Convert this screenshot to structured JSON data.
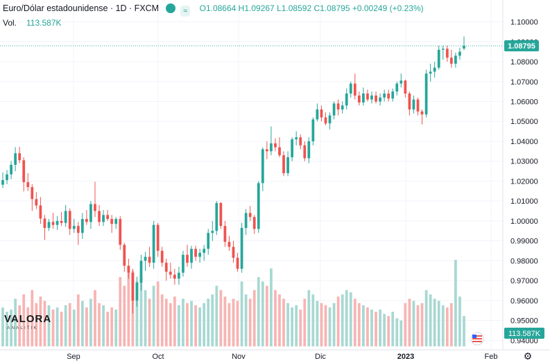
{
  "header": {
    "title": "Euro/Dólar estadounidense · 1D · FXCM",
    "open": "O1.08664",
    "high": "H1.09267",
    "low": "L1.08592",
    "close": "C1.08795",
    "change": "+0.00249 (+0.23%)",
    "vol_label": "Vol.",
    "vol_value": "113.587K"
  },
  "logo": {
    "name": "VALORA",
    "sub": "ANALITIK"
  },
  "colors": {
    "up": "#26a69a",
    "down": "#ef5350",
    "up_vol": "#a8d8d2",
    "down_vol": "#f7b4b3"
  },
  "chart_data": {
    "type": "candlestick",
    "price_axis": {
      "ticks": [
        "1.10000",
        "1.09000",
        "1.08000",
        "1.07000",
        "1.06000",
        "1.05000",
        "1.04000",
        "1.03000",
        "1.02000",
        "1.01000",
        "1.00000",
        "0.99000",
        "0.98000",
        "0.97000",
        "0.96000",
        "0.95000",
        "0.94000"
      ],
      "range": [
        0.937,
        1.1075
      ]
    },
    "time_axis": {
      "labels": [
        "Sep",
        "Oct",
        "Nov",
        "Dic",
        "2023",
        "Feb"
      ]
    },
    "last_price_label": "1.08795",
    "last_volume_label": "113.587K",
    "candles": [
      [
        1.0182,
        1.0244,
        1.0165,
        1.0205,
        90
      ],
      [
        1.0205,
        1.0256,
        1.0185,
        1.0234,
        80
      ],
      [
        1.0234,
        1.0301,
        1.021,
        1.0282,
        85
      ],
      [
        1.0282,
        1.0371,
        1.025,
        1.034,
        110
      ],
      [
        1.034,
        1.0372,
        1.029,
        1.0305,
        95
      ],
      [
        1.0305,
        1.032,
        1.0148,
        1.0195,
        120
      ],
      [
        1.0195,
        1.024,
        1.015,
        1.017,
        90
      ],
      [
        1.017,
        1.0185,
        1.005,
        1.011,
        130
      ],
      [
        1.011,
        1.0145,
        1.006,
        1.0078,
        100
      ],
      [
        1.0078,
        1.012,
        0.9985,
        1.0012,
        115
      ],
      [
        1.0012,
        1.003,
        0.9905,
        0.9965,
        105
      ],
      [
        0.9965,
        1.001,
        0.995,
        0.9995,
        95
      ],
      [
        0.9995,
        1.004,
        0.996,
        0.998,
        85
      ],
      [
        0.998,
        1.0025,
        0.9955,
        1.0,
        90
      ],
      [
        1.0,
        1.0045,
        0.9975,
        0.999,
        80
      ],
      [
        0.999,
        1.008,
        0.997,
        1.005,
        95
      ],
      [
        1.005,
        1.0063,
        0.993,
        0.996,
        100
      ],
      [
        0.996,
        1.001,
        0.994,
        0.9975,
        85
      ],
      [
        0.9975,
        0.9995,
        0.988,
        0.994,
        120
      ],
      [
        0.994,
        1.004,
        0.991,
        1.001,
        105
      ],
      [
        1.001,
        1.0055,
        0.998,
        0.9995,
        90
      ],
      [
        0.9995,
        1.01,
        0.996,
        1.0085,
        110
      ],
      [
        1.0085,
        1.0197,
        1.002,
        1.005,
        130
      ],
      [
        1.005,
        1.008,
        0.9975,
        0.9995,
        100
      ],
      [
        0.9995,
        1.0055,
        0.9975,
        1.003,
        95
      ],
      [
        1.003,
        1.0055,
        1.0,
        1.001,
        80
      ],
      [
        1.001,
        1.003,
        0.994,
        0.9985,
        90
      ],
      [
        0.9985,
        1.002,
        0.996,
        1.001,
        85
      ],
      [
        1.001,
        1.0025,
        0.9855,
        0.988,
        160
      ],
      [
        0.988,
        0.989,
        0.9745,
        0.9775,
        140
      ],
      [
        0.9775,
        0.981,
        0.971,
        0.974,
        170
      ],
      [
        0.974,
        0.976,
        0.9536,
        0.96,
        175
      ],
      [
        0.96,
        0.972,
        0.957,
        0.969,
        150
      ],
      [
        0.969,
        0.983,
        0.965,
        0.98,
        160
      ],
      [
        0.98,
        0.9845,
        0.975,
        0.982,
        130
      ],
      [
        0.982,
        0.987,
        0.977,
        0.979,
        110
      ],
      [
        0.979,
        1.0,
        0.976,
        0.998,
        140
      ],
      [
        0.998,
        0.999,
        0.982,
        0.985,
        150
      ],
      [
        0.985,
        0.987,
        0.977,
        0.979,
        120
      ],
      [
        0.979,
        0.981,
        0.97,
        0.9745,
        110
      ],
      [
        0.9745,
        0.979,
        0.971,
        0.973,
        100
      ],
      [
        0.973,
        0.976,
        0.968,
        0.971,
        115
      ],
      [
        0.971,
        0.977,
        0.968,
        0.974,
        95
      ],
      [
        0.974,
        0.985,
        0.972,
        0.983,
        110
      ],
      [
        0.983,
        0.988,
        0.977,
        0.979,
        100
      ],
      [
        0.979,
        0.9875,
        0.976,
        0.986,
        105
      ],
      [
        0.986,
        0.9875,
        0.98,
        0.982,
        95
      ],
      [
        0.982,
        0.986,
        0.979,
        0.984,
        90
      ],
      [
        0.984,
        0.988,
        0.98,
        0.986,
        100
      ],
      [
        0.986,
        0.996,
        0.983,
        0.994,
        110
      ],
      [
        0.994,
        1.0,
        0.99,
        0.995,
        120
      ],
      [
        0.995,
        1.01,
        0.993,
        1.009,
        140
      ],
      [
        1.009,
        1.0095,
        0.996,
        0.9975,
        130
      ],
      [
        0.9975,
        1.0,
        0.987,
        0.9895,
        115
      ],
      [
        0.9895,
        0.9925,
        0.985,
        0.987,
        100
      ],
      [
        0.987,
        0.99,
        0.979,
        0.9815,
        110
      ],
      [
        0.9815,
        0.984,
        0.9745,
        0.976,
        105
      ],
      [
        0.976,
        0.999,
        0.974,
        0.9965,
        150
      ],
      [
        0.9965,
        1.006,
        0.993,
        1.004,
        120
      ],
      [
        1.004,
        1.0075,
        1.0,
        1.002,
        110
      ],
      [
        1.002,
        1.003,
        0.9935,
        0.996,
        130
      ],
      [
        0.996,
        1.02,
        0.994,
        1.019,
        160
      ],
      [
        1.019,
        1.037,
        1.015,
        1.036,
        150
      ],
      [
        1.036,
        1.04,
        1.031,
        1.035,
        140
      ],
      [
        1.035,
        1.0475,
        1.033,
        1.039,
        180
      ],
      [
        1.039,
        1.0415,
        1.035,
        1.037,
        130
      ],
      [
        1.037,
        1.042,
        1.032,
        1.033,
        120
      ],
      [
        1.033,
        1.035,
        1.0225,
        1.024,
        110
      ],
      [
        1.024,
        1.035,
        1.0225,
        1.032,
        100
      ],
      [
        1.032,
        1.042,
        1.03,
        1.041,
        90
      ],
      [
        1.041,
        1.045,
        1.038,
        1.042,
        95
      ],
      [
        1.042,
        1.0435,
        1.036,
        1.038,
        85
      ],
      [
        1.038,
        1.04,
        1.03,
        1.0315,
        110
      ],
      [
        1.0315,
        1.042,
        1.029,
        1.04,
        130
      ],
      [
        1.04,
        1.052,
        1.038,
        1.051,
        120
      ],
      [
        1.051,
        1.059,
        1.05,
        1.056,
        105
      ],
      [
        1.056,
        1.058,
        1.05,
        1.052,
        100
      ],
      [
        1.052,
        1.0545,
        1.048,
        1.049,
        95
      ],
      [
        1.049,
        1.0545,
        1.046,
        1.053,
        90
      ],
      [
        1.053,
        1.06,
        1.051,
        1.059,
        100
      ],
      [
        1.059,
        1.061,
        1.053,
        1.056,
        115
      ],
      [
        1.056,
        1.06,
        1.054,
        1.058,
        120
      ],
      [
        1.058,
        1.0665,
        1.056,
        1.064,
        130
      ],
      [
        1.064,
        1.07,
        1.062,
        1.069,
        125
      ],
      [
        1.069,
        1.074,
        1.061,
        1.063,
        110
      ],
      [
        1.063,
        1.065,
        1.058,
        1.0595,
        100
      ],
      [
        1.0595,
        1.067,
        1.058,
        1.064,
        95
      ],
      [
        1.064,
        1.066,
        1.06,
        1.061,
        90
      ],
      [
        1.061,
        1.065,
        1.059,
        1.063,
        85
      ],
      [
        1.063,
        1.065,
        1.059,
        1.06,
        80
      ],
      [
        1.06,
        1.064,
        1.058,
        1.062,
        85
      ],
      [
        1.062,
        1.066,
        1.06,
        1.064,
        75
      ],
      [
        1.064,
        1.066,
        1.06,
        1.0615,
        70
      ],
      [
        1.0615,
        1.0665,
        1.06,
        1.065,
        80
      ],
      [
        1.065,
        1.07,
        1.063,
        1.069,
        65
      ],
      [
        1.069,
        1.074,
        1.067,
        1.0705,
        60
      ],
      [
        1.0705,
        1.071,
        1.062,
        1.064,
        100
      ],
      [
        1.064,
        1.065,
        1.053,
        1.056,
        110
      ],
      [
        1.056,
        1.063,
        1.054,
        1.061,
        105
      ],
      [
        1.061,
        1.062,
        1.053,
        1.055,
        95
      ],
      [
        1.055,
        1.056,
        1.0485,
        1.0535,
        100
      ],
      [
        1.0535,
        1.076,
        1.052,
        1.074,
        130
      ],
      [
        1.074,
        1.079,
        1.07,
        1.075,
        120
      ],
      [
        1.075,
        1.08,
        1.072,
        1.077,
        110
      ],
      [
        1.077,
        1.088,
        1.076,
        1.086,
        105
      ],
      [
        1.086,
        1.088,
        1.081,
        1.0865,
        95
      ],
      [
        1.0865,
        1.088,
        1.08,
        1.082,
        90
      ],
      [
        1.082,
        1.086,
        1.077,
        1.079,
        100
      ],
      [
        1.079,
        1.0845,
        1.077,
        1.083,
        200
      ],
      [
        1.083,
        1.087,
        1.081,
        1.085,
        115
      ],
      [
        1.0866,
        1.0927,
        1.0859,
        1.088,
        70
      ]
    ]
  }
}
